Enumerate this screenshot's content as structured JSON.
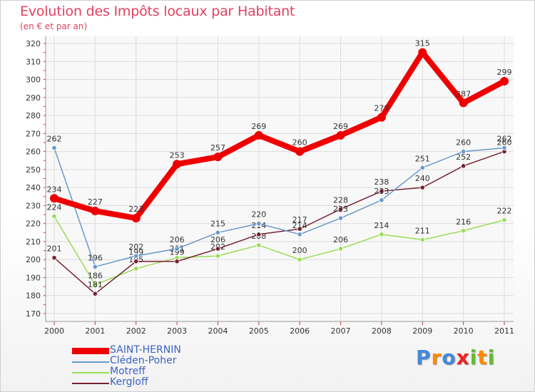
{
  "chart_data": {
    "type": "line",
    "title": "Evolution des Impôts locaux par Habitant",
    "subtitle": "(en € et par an)",
    "xlabel": "",
    "ylabel": "",
    "ylim": [
      170,
      320
    ],
    "y_ticks": [
      170,
      180,
      190,
      200,
      210,
      220,
      230,
      240,
      250,
      260,
      270,
      280,
      290,
      300,
      310,
      320
    ],
    "categories": [
      "2000",
      "2001",
      "2002",
      "2003",
      "2004",
      "2005",
      "2006",
      "2007",
      "2008",
      "2009",
      "2010",
      "2011"
    ],
    "series": [
      {
        "name": "Motreff",
        "color": "#99dd55",
        "values": [
          224,
          186,
          195,
          201,
          202,
          208,
          200,
          206,
          214,
          211,
          216,
          222
        ]
      },
      {
        "name": "Kergloff",
        "color": "#772233",
        "values": [
          201,
          181,
          199,
          199,
          206,
          214,
          217,
          228,
          238,
          240,
          252,
          260
        ]
      },
      {
        "name": "Cléden-Poher",
        "color": "#6699cc",
        "values": [
          262,
          196,
          202,
          206,
          215,
          220,
          214,
          223,
          233,
          251,
          260,
          262
        ]
      },
      {
        "name": "SAINT-HERNIN",
        "color": "#ee0000",
        "values": [
          234,
          227,
          223,
          253,
          257,
          269,
          260,
          269,
          279,
          315,
          287,
          299
        ]
      }
    ],
    "legend_position": "bottom-left"
  },
  "legend": [
    {
      "label": "SAINT-HERNIN",
      "color": "#ee0000"
    },
    {
      "label": "Cléden-Poher",
      "color": "#6699cc"
    },
    {
      "label": "Motreff",
      "color": "#99dd55"
    },
    {
      "label": "Kergloff",
      "color": "#772233"
    }
  ],
  "logo": {
    "letters": [
      "P",
      "r",
      "o",
      "x",
      "i",
      "t",
      "i"
    ],
    "colors": [
      "#4488dd",
      "#ff8800",
      "#4488dd",
      "#ee2222",
      "#66bb33",
      "#ff8800",
      "#66bb33"
    ]
  }
}
